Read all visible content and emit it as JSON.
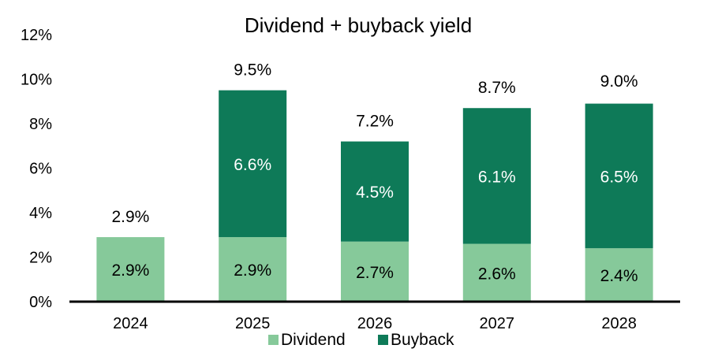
{
  "chart_data": {
    "type": "bar",
    "stacked": true,
    "title": "Dividend + buyback yield",
    "categories": [
      "2024",
      "2025",
      "2026",
      "2027",
      "2028"
    ],
    "series": [
      {
        "name": "Dividend",
        "color": "#86c99a",
        "values": [
          2.9,
          2.9,
          2.7,
          2.6,
          2.4
        ],
        "labels": [
          "2.9%",
          "2.9%",
          "2.7%",
          "2.6%",
          "2.4%"
        ]
      },
      {
        "name": "Buyback",
        "color": "#0e7a58",
        "values": [
          0.0,
          6.6,
          4.5,
          6.1,
          6.5
        ],
        "labels": [
          "-",
          "6.6%",
          "4.5%",
          "6.1%",
          "6.5%"
        ]
      }
    ],
    "totals": [
      2.9,
      9.5,
      7.2,
      8.7,
      9.0
    ],
    "total_labels": [
      "2.9%",
      "9.5%",
      "7.2%",
      "8.7%",
      "9.0%"
    ],
    "ylim": [
      0,
      12
    ],
    "yticks": [
      0,
      2,
      4,
      6,
      8,
      10,
      12
    ],
    "ytick_labels": [
      "0%",
      "2%",
      "4%",
      "6%",
      "8%",
      "10%",
      "12%"
    ],
    "xlabel": "",
    "ylabel": "",
    "legend_position": "bottom-center",
    "grid": false
  }
}
